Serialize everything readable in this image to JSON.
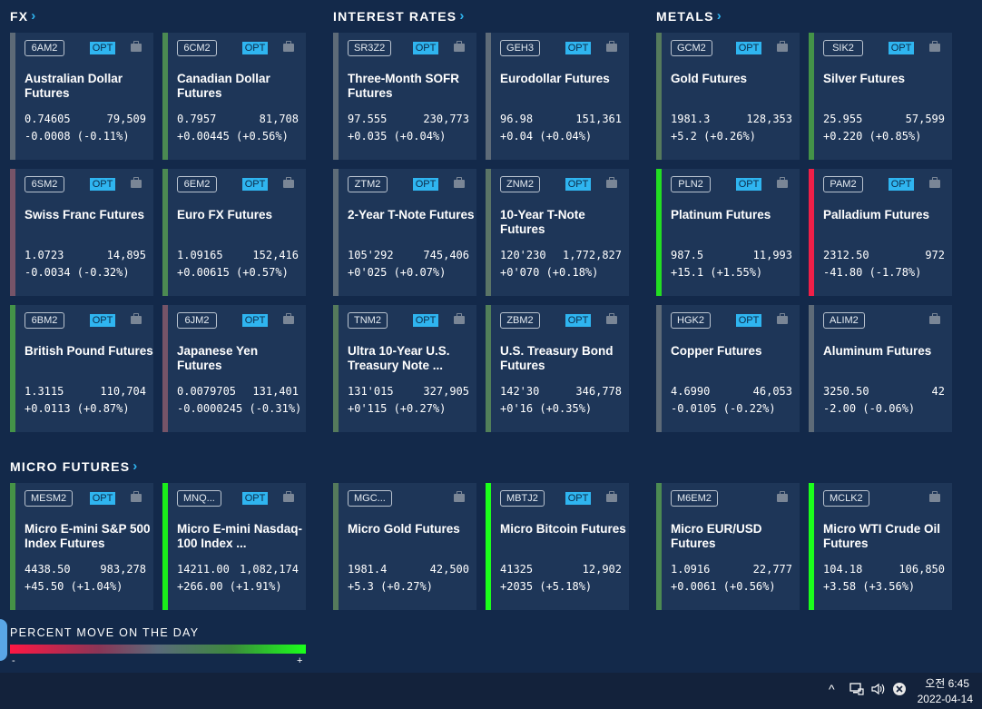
{
  "sections": {
    "fx": "FX",
    "interest_rates": "INTEREST RATES",
    "metals": "METALS",
    "micro": "MICRO FUTURES"
  },
  "cards": [
    {
      "symbol": "6AM2",
      "opt": "OPT",
      "name": "Australian Dollar Futures",
      "price": "0.74605",
      "volume": "79,509",
      "change": "-0.0008 (-0.11%)",
      "color": "#5d6a77"
    },
    {
      "symbol": "6CM2",
      "opt": "OPT",
      "name": "Canadian Dollar Futures",
      "price": "0.7957",
      "volume": "81,708",
      "change": "+0.00445 (+0.56%)",
      "color": "#4b8a52"
    },
    {
      "symbol": "SR3Z2",
      "opt": "OPT",
      "name": "Three-Month SOFR Futures",
      "price": "97.555",
      "volume": "230,773",
      "change": "+0.035 (+0.04%)",
      "color": "#5e6b78"
    },
    {
      "symbol": "GEH3",
      "opt": "OPT",
      "name": "Eurodollar Futures",
      "price": "96.98",
      "volume": "151,361",
      "change": "+0.04 (+0.04%)",
      "color": "#5e6b78"
    },
    {
      "symbol": "GCM2",
      "opt": "OPT",
      "name": "Gold Futures",
      "price": "1981.3",
      "volume": "128,353",
      "change": "+5.2 (+0.26%)",
      "color": "#557a5c"
    },
    {
      "symbol": "SIK2",
      "opt": "OPT",
      "name": "Silver Futures",
      "price": "25.955",
      "volume": "57,599",
      "change": "+0.220 (+0.85%)",
      "color": "#449348"
    },
    {
      "symbol": "6SM2",
      "opt": "OPT",
      "name": "Swiss Franc Futures",
      "price": "1.0723",
      "volume": "14,895",
      "change": "-0.0034 (-0.32%)",
      "color": "#765468"
    },
    {
      "symbol": "6EM2",
      "opt": "OPT",
      "name": "Euro FX Futures",
      "price": "1.09165",
      "volume": "152,416",
      "change": "+0.00615 (+0.57%)",
      "color": "#4c8a52"
    },
    {
      "symbol": "ZTM2",
      "opt": "OPT",
      "name": "2-Year T-Note Futures",
      "price": "105'292",
      "volume": "745,406",
      "change": "+0'025 (+0.07%)",
      "color": "#5e6c78"
    },
    {
      "symbol": "ZNM2",
      "opt": "OPT",
      "name": "10-Year T-Note Futures",
      "price": "120'230",
      "volume": "1,772,827",
      "change": "+0'070 (+0.18%)",
      "color": "#5a7466"
    },
    {
      "symbol": "PLN2",
      "opt": "OPT",
      "name": "Platinum Futures",
      "price": "987.5",
      "volume": "11,993",
      "change": "+15.1 (+1.55%)",
      "color": "#22dd22"
    },
    {
      "symbol": "PAM2",
      "opt": "OPT",
      "name": "Palladium Futures",
      "price": "2312.50",
      "volume": "972",
      "change": "-41.80 (-1.78%)",
      "color": "#ef1f48"
    },
    {
      "symbol": "6BM2",
      "opt": "OPT",
      "name": "British Pound Futures",
      "price": "1.3115",
      "volume": "110,704",
      "change": "+0.0113 (+0.87%)",
      "color": "#449348"
    },
    {
      "symbol": "6JM2",
      "opt": "OPT",
      "name": "Japanese Yen Futures",
      "price": "0.0079705",
      "volume": "131,401",
      "change": "-0.0000245 (-0.31%)",
      "color": "#765468"
    },
    {
      "symbol": "TNM2",
      "opt": "OPT",
      "name": "Ultra 10-Year U.S. Treasury Note ...",
      "price": "131'015",
      "volume": "327,905",
      "change": "+0'115 (+0.27%)",
      "color": "#557a5c"
    },
    {
      "symbol": "ZBM2",
      "opt": "OPT",
      "name": "U.S. Treasury Bond Futures",
      "price": "142'30",
      "volume": "346,778",
      "change": "+0'16 (+0.35%)",
      "color": "#517f59"
    },
    {
      "symbol": "HGK2",
      "opt": "OPT",
      "name": "Copper Futures",
      "price": "4.6990",
      "volume": "46,053",
      "change": "-0.0105 (-0.22%)",
      "color": "#5d6a77"
    },
    {
      "symbol": "ALIM2",
      "opt": "",
      "name": "Aluminum Futures",
      "price": "3250.50",
      "volume": "42",
      "change": "-2.00 (-0.06%)",
      "color": "#5e6b78"
    },
    {
      "symbol": "MESM2",
      "opt": "OPT",
      "name": "Micro E-mini S&P 500 Index Futures",
      "price": "4438.50",
      "volume": "983,278",
      "change": "+45.50 (+1.04%)",
      "color": "#459246"
    },
    {
      "symbol": "MNQ...",
      "opt": "OPT",
      "name": "Micro E-mini Nasdaq-100 Index ...",
      "price": "14211.00",
      "volume": "1,082,174",
      "change": "+266.00 (+1.91%)",
      "color": "#1bee1b"
    },
    {
      "symbol": "MGC...",
      "opt": "",
      "name": "Micro Gold Futures",
      "price": "1981.4",
      "volume": "42,500",
      "change": "+5.3 (+0.27%)",
      "color": "#557a5c"
    },
    {
      "symbol": "MBTJ2",
      "opt": "OPT",
      "name": "Micro Bitcoin Futures",
      "price": "41325",
      "volume": "12,902",
      "change": "+2035 (+5.18%)",
      "color": "#1bff1b"
    },
    {
      "symbol": "M6EM2",
      "opt": "",
      "name": "Micro EUR/USD Futures",
      "price": "1.0916",
      "volume": "22,777",
      "change": "+0.0061 (+0.56%)",
      "color": "#4c8a52"
    },
    {
      "symbol": "MCLK2",
      "opt": "",
      "name": "Micro WTI Crude Oil Futures",
      "price": "104.18",
      "volume": "106,850",
      "change": "+3.58 (+3.56%)",
      "color": "#1bff1b"
    }
  ],
  "legend": {
    "title": "PERCENT MOVE ON THE DAY",
    "min": "-",
    "max": "+"
  },
  "taskbar": {
    "time": "오전 6:45",
    "date": "2022-04-14",
    "icons": [
      "chevron-up-icon",
      "network-icon",
      "volume-icon",
      "close-circle-icon"
    ]
  }
}
